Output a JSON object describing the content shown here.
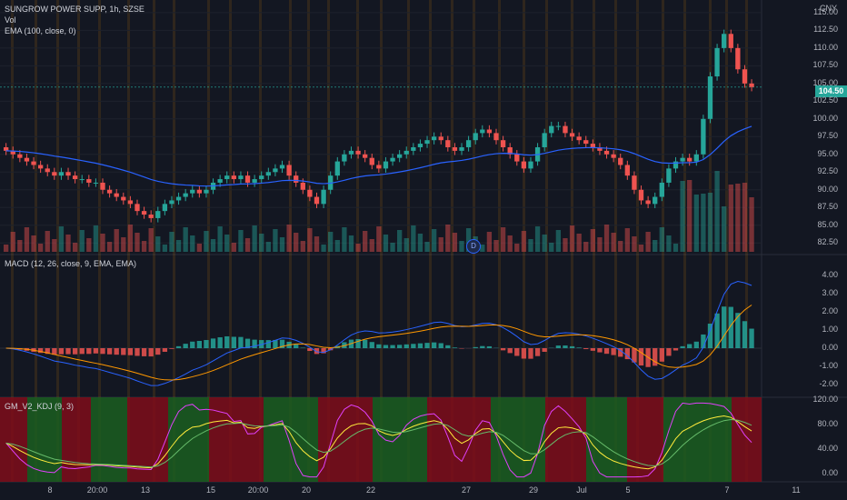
{
  "symbol_line": "SUNGROW POWER SUPP, 1h, SZSE",
  "vol_label": "Vol",
  "ema_label": "EMA (100, close, 0)",
  "macd_label": "MACD (12, 26, close, 9, EMA, EMA)",
  "kdj_label": "GM_V2_KDJ (9, 3)",
  "currency": "CNY",
  "current_price": "104.50",
  "dividend_badge": "D",
  "price_ticks": [
    "115.00",
    "112.50",
    "110.00",
    "107.50",
    "105.00",
    "102.50",
    "100.00",
    "97.50",
    "95.00",
    "92.50",
    "90.00",
    "87.50",
    "85.00",
    "82.50"
  ],
  "macd_ticks": [
    "4.00",
    "3.00",
    "2.00",
    "1.00",
    "0.00",
    "-1.00",
    "-2.00"
  ],
  "kdj_ticks": [
    "120.00",
    "80.00",
    "40.00",
    "0.00"
  ],
  "time_ticks": [
    "8",
    "20:00",
    "13",
    "15",
    "20:00",
    "20",
    "22",
    "27",
    "29",
    "Jul",
    "5",
    "7",
    "11"
  ],
  "colors": {
    "up": "#26a69a",
    "down": "#ef5350",
    "ema": "#2962ff",
    "signal": "#ff9800",
    "bg": "#131722"
  },
  "chart_data": {
    "type": "candlestick",
    "symbol": "SUNGROW POWER SUPP",
    "interval": "1h",
    "exchange": "SZSE",
    "price_range": [
      81.5,
      115.5
    ],
    "close_estimates": [
      95.5,
      95,
      94.5,
      94,
      93.5,
      93,
      92.5,
      92,
      92.5,
      92,
      91.5,
      91.5,
      91,
      91,
      90,
      89.5,
      89,
      88.5,
      88,
      87,
      86.5,
      86,
      87,
      88,
      88.5,
      89,
      89.5,
      90,
      89.5,
      90,
      91,
      91.5,
      92,
      91.5,
      92,
      91,
      91.5,
      92,
      92.5,
      93,
      93.5,
      92,
      91,
      90,
      89,
      88,
      90,
      92,
      94,
      95,
      95.5,
      95,
      94.5,
      93.5,
      93,
      94,
      94.5,
      95,
      95.5,
      96,
      96.5,
      97,
      97.5,
      97,
      96,
      95.5,
      96,
      97,
      98,
      98.5,
      98,
      97,
      96,
      95,
      94,
      93,
      94,
      96,
      98,
      99,
      99,
      98,
      97.5,
      97,
      96.5,
      96,
      95.5,
      95,
      94.5,
      93.5,
      92,
      90,
      88.5,
      88,
      89,
      91,
      93,
      94,
      94.5,
      94,
      95,
      100,
      106,
      110,
      112,
      110,
      107,
      105,
      104.5
    ],
    "macd_range": [
      -2.5,
      4.5
    ],
    "kdj_range": [
      -10,
      120
    ]
  }
}
